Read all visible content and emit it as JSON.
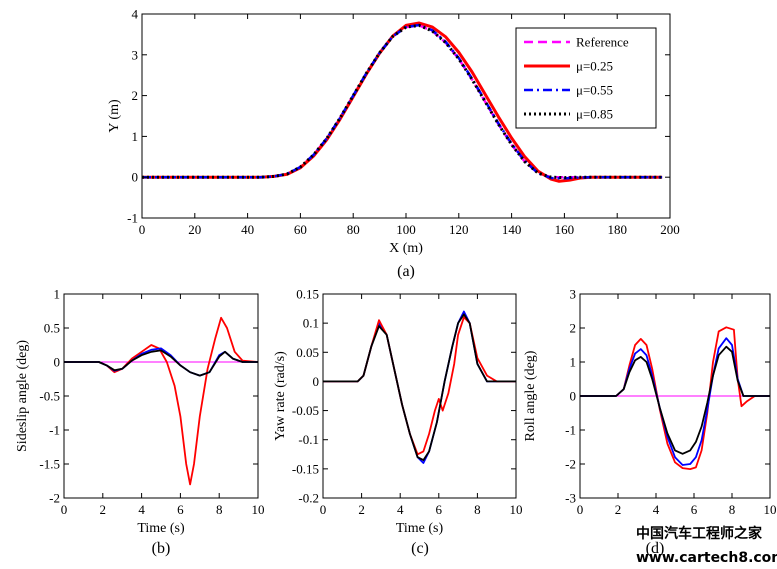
{
  "colors": {
    "reference": "#ff00ff",
    "mu_025": "#ff0000",
    "mu_055": "#0000ff",
    "mu_085": "#000000"
  },
  "watermark": {
    "line1": "中国汽车工程师之家",
    "line2": "www.cartech8.com"
  },
  "chart_data": [
    {
      "type": "line",
      "panel": "a",
      "caption": "(a)",
      "xlabel": "X (m)",
      "ylabel": "Y (m)",
      "xlim": [
        0,
        200
      ],
      "ylim": [
        -1,
        4
      ],
      "xticks": [
        0,
        20,
        40,
        60,
        80,
        100,
        120,
        140,
        160,
        180,
        200
      ],
      "yticks": [
        -1,
        0,
        1,
        2,
        3,
        4
      ],
      "grid": false,
      "legend_position": "top-right",
      "series": [
        {
          "name": "Reference",
          "color_key": "reference",
          "style": "dash",
          "x": [
            0,
            45,
            50,
            55,
            60,
            65,
            70,
            75,
            80,
            85,
            90,
            95,
            100,
            105,
            110,
            115,
            120,
            125,
            130,
            135,
            140,
            145,
            150,
            155,
            160,
            165,
            170,
            197
          ],
          "y": [
            0,
            0,
            0.02,
            0.08,
            0.25,
            0.55,
            0.95,
            1.45,
            2.0,
            2.55,
            3.05,
            3.45,
            3.68,
            3.72,
            3.58,
            3.3,
            2.9,
            2.4,
            1.85,
            1.3,
            0.8,
            0.38,
            0.1,
            0.0,
            0.0,
            0.0,
            0.0,
            0.0
          ]
        },
        {
          "name": "μ=0.25",
          "color_key": "mu_025",
          "style": "solid",
          "x": [
            0,
            45,
            50,
            55,
            60,
            65,
            70,
            75,
            80,
            85,
            90,
            95,
            100,
            105,
            110,
            115,
            120,
            125,
            130,
            135,
            140,
            145,
            150,
            155,
            158,
            162,
            166,
            170,
            197
          ],
          "y": [
            0,
            0,
            0.02,
            0.07,
            0.23,
            0.52,
            0.92,
            1.42,
            1.97,
            2.53,
            3.04,
            3.46,
            3.72,
            3.78,
            3.68,
            3.44,
            3.06,
            2.58,
            2.03,
            1.48,
            0.96,
            0.5,
            0.15,
            -0.05,
            -0.1,
            -0.07,
            -0.02,
            0.0,
            0.0
          ]
        },
        {
          "name": "μ=0.55",
          "color_key": "mu_055",
          "style": "dashdot",
          "x": [
            0,
            45,
            50,
            55,
            60,
            65,
            70,
            75,
            80,
            85,
            90,
            95,
            100,
            105,
            110,
            115,
            120,
            125,
            130,
            135,
            140,
            145,
            150,
            155,
            160,
            165,
            170,
            197
          ],
          "y": [
            0,
            0,
            0.02,
            0.08,
            0.25,
            0.55,
            0.95,
            1.45,
            2.0,
            2.55,
            3.05,
            3.45,
            3.68,
            3.73,
            3.6,
            3.32,
            2.92,
            2.42,
            1.87,
            1.32,
            0.82,
            0.4,
            0.1,
            -0.02,
            -0.03,
            -0.01,
            0.0,
            0.0
          ]
        },
        {
          "name": "μ=0.85",
          "color_key": "mu_085",
          "style": "dot",
          "x": [
            0,
            45,
            50,
            55,
            60,
            65,
            70,
            75,
            80,
            85,
            90,
            95,
            100,
            105,
            110,
            115,
            120,
            125,
            130,
            135,
            140,
            145,
            150,
            155,
            160,
            165,
            170,
            197
          ],
          "y": [
            0,
            0,
            0.02,
            0.08,
            0.25,
            0.55,
            0.95,
            1.45,
            2.0,
            2.55,
            3.05,
            3.45,
            3.68,
            3.72,
            3.58,
            3.3,
            2.9,
            2.4,
            1.85,
            1.3,
            0.8,
            0.38,
            0.1,
            0.0,
            -0.01,
            0.0,
            0.0,
            0.0
          ]
        }
      ]
    },
    {
      "type": "line",
      "panel": "b",
      "caption": "(b)",
      "xlabel": "Time (s)",
      "ylabel": "Sideslip angle (deg)",
      "xlim": [
        0,
        10
      ],
      "ylim": [
        -2,
        1
      ],
      "xticks": [
        0,
        2,
        4,
        6,
        8,
        10
      ],
      "yticks": [
        -2,
        -1.5,
        -1,
        -0.5,
        0,
        0.5,
        1
      ],
      "grid": false,
      "series": [
        {
          "color_key": "reference",
          "x": [
            0,
            10
          ],
          "y": [
            0,
            0
          ]
        },
        {
          "color_key": "mu_025",
          "x": [
            0,
            1.8,
            2.2,
            2.6,
            3.0,
            3.5,
            4.0,
            4.5,
            4.9,
            5.3,
            5.7,
            6.0,
            6.3,
            6.5,
            6.7,
            7.0,
            7.4,
            7.8,
            8.1,
            8.4,
            8.8,
            9.2,
            10
          ],
          "y": [
            0,
            0,
            -0.05,
            -0.15,
            -0.1,
            0.05,
            0.15,
            0.25,
            0.2,
            0.0,
            -0.35,
            -0.8,
            -1.5,
            -1.8,
            -1.5,
            -0.8,
            -0.1,
            0.35,
            0.65,
            0.5,
            0.15,
            0.02,
            0
          ]
        },
        {
          "color_key": "mu_055",
          "x": [
            0,
            1.8,
            2.2,
            2.6,
            3.0,
            3.5,
            4.0,
            4.5,
            5.0,
            5.5,
            6.0,
            6.5,
            7.0,
            7.5,
            8.0,
            8.3,
            8.7,
            9.2,
            10
          ],
          "y": [
            0,
            0,
            -0.05,
            -0.13,
            -0.1,
            0.02,
            0.12,
            0.18,
            0.2,
            0.1,
            -0.05,
            -0.15,
            -0.2,
            -0.15,
            0.1,
            0.15,
            0.05,
            0.0,
            0
          ]
        },
        {
          "color_key": "mu_085",
          "x": [
            0,
            1.8,
            2.2,
            2.6,
            3.0,
            3.5,
            4.0,
            4.5,
            5.0,
            5.5,
            6.0,
            6.5,
            7.0,
            7.5,
            8.0,
            8.3,
            8.7,
            9.2,
            10
          ],
          "y": [
            0,
            0,
            -0.05,
            -0.12,
            -0.1,
            0.02,
            0.1,
            0.15,
            0.17,
            0.08,
            -0.05,
            -0.15,
            -0.2,
            -0.15,
            0.08,
            0.15,
            0.05,
            0.0,
            0
          ]
        }
      ]
    },
    {
      "type": "line",
      "panel": "c",
      "caption": "(c)",
      "xlabel": "Time (s)",
      "ylabel": "Yaw rate (rad/s)",
      "xlim": [
        0,
        10
      ],
      "ylim": [
        -0.2,
        0.15
      ],
      "xticks": [
        0,
        2,
        4,
        6,
        8,
        10
      ],
      "yticks": [
        -0.2,
        -0.15,
        -0.1,
        -0.05,
        0,
        0.05,
        0.1,
        0.15
      ],
      "grid": false,
      "series": [
        {
          "color_key": "mu_055",
          "x": [
            0,
            1.8,
            2.1,
            2.5,
            2.9,
            3.3,
            3.7,
            4.1,
            4.5,
            4.9,
            5.2,
            5.5,
            5.9,
            6.3,
            6.7,
            7.0,
            7.3,
            7.6,
            8.0,
            8.5,
            9.0,
            10
          ],
          "y": [
            0,
            0,
            0.01,
            0.06,
            0.1,
            0.08,
            0.02,
            -0.04,
            -0.09,
            -0.13,
            -0.14,
            -0.12,
            -0.07,
            0.0,
            0.06,
            0.1,
            0.12,
            0.1,
            0.03,
            0.0,
            0.0,
            0
          ]
        },
        {
          "color_key": "mu_025",
          "x": [
            0,
            1.8,
            2.1,
            2.5,
            2.9,
            3.3,
            3.7,
            4.1,
            4.5,
            4.9,
            5.2,
            5.5,
            5.8,
            6.0,
            6.2,
            6.5,
            6.8,
            7.0,
            7.3,
            7.6,
            8.0,
            8.5,
            9.0,
            10
          ],
          "y": [
            0,
            0,
            0.01,
            0.06,
            0.105,
            0.08,
            0.02,
            -0.04,
            -0.09,
            -0.125,
            -0.12,
            -0.09,
            -0.05,
            -0.03,
            -0.05,
            -0.02,
            0.03,
            0.08,
            0.11,
            0.1,
            0.04,
            0.01,
            0.0,
            0
          ]
        },
        {
          "color_key": "mu_085",
          "x": [
            0,
            1.8,
            2.1,
            2.5,
            2.9,
            3.3,
            3.7,
            4.1,
            4.5,
            4.9,
            5.2,
            5.5,
            5.9,
            6.3,
            6.7,
            7.0,
            7.3,
            7.6,
            8.0,
            8.5,
            9.0,
            10
          ],
          "y": [
            0,
            0,
            0.01,
            0.06,
            0.095,
            0.08,
            0.02,
            -0.04,
            -0.09,
            -0.13,
            -0.135,
            -0.12,
            -0.07,
            0.0,
            0.06,
            0.1,
            0.115,
            0.1,
            0.03,
            0.0,
            0.0,
            0
          ]
        }
      ]
    },
    {
      "type": "line",
      "panel": "d",
      "caption": "(d)",
      "xlabel": "",
      "ylabel": "Roll angle (deg)",
      "xlim": [
        0,
        10
      ],
      "ylim": [
        -3,
        3
      ],
      "xticks": [
        0,
        2,
        4,
        6,
        8,
        10
      ],
      "yticks": [
        -3,
        -2,
        -1,
        0,
        1,
        2,
        3
      ],
      "grid": false,
      "series": [
        {
          "color_key": "reference",
          "x": [
            0,
            10
          ],
          "y": [
            0,
            0
          ]
        },
        {
          "color_key": "mu_025",
          "x": [
            0,
            1.9,
            2.3,
            2.6,
            2.9,
            3.2,
            3.5,
            3.8,
            4.2,
            4.6,
            5.0,
            5.4,
            5.8,
            6.1,
            6.4,
            6.7,
            7.0,
            7.3,
            7.7,
            8.1,
            8.3,
            8.5,
            8.8,
            9.2,
            10
          ],
          "y": [
            0,
            0,
            0.2,
            0.9,
            1.5,
            1.68,
            1.5,
            0.8,
            -0.4,
            -1.4,
            -1.95,
            -2.12,
            -2.15,
            -2.1,
            -1.6,
            -0.5,
            1.0,
            1.9,
            2.02,
            1.95,
            0.5,
            -0.3,
            -0.15,
            0.0,
            0
          ]
        },
        {
          "color_key": "mu_055",
          "x": [
            0,
            1.9,
            2.3,
            2.6,
            2.9,
            3.2,
            3.5,
            3.8,
            4.2,
            4.6,
            5.0,
            5.4,
            5.8,
            6.1,
            6.4,
            6.7,
            7.0,
            7.3,
            7.7,
            8.0,
            8.3,
            8.6,
            9.0,
            10
          ],
          "y": [
            0,
            0,
            0.2,
            0.8,
            1.25,
            1.38,
            1.2,
            0.6,
            -0.35,
            -1.2,
            -1.8,
            -2.03,
            -2.0,
            -1.8,
            -1.3,
            -0.4,
            0.6,
            1.4,
            1.7,
            1.5,
            0.5,
            0.0,
            0.0,
            0
          ]
        },
        {
          "color_key": "mu_085",
          "x": [
            0,
            1.9,
            2.3,
            2.6,
            2.9,
            3.2,
            3.5,
            3.8,
            4.2,
            4.6,
            5.0,
            5.4,
            5.8,
            6.1,
            6.4,
            6.7,
            7.0,
            7.3,
            7.7,
            8.0,
            8.3,
            8.6,
            9.0,
            10
          ],
          "y": [
            0,
            0,
            0.2,
            0.7,
            1.05,
            1.15,
            1.0,
            0.5,
            -0.35,
            -1.1,
            -1.6,
            -1.7,
            -1.6,
            -1.35,
            -0.9,
            -0.2,
            0.6,
            1.2,
            1.45,
            1.3,
            0.45,
            0.0,
            0.0,
            0
          ]
        }
      ]
    }
  ]
}
